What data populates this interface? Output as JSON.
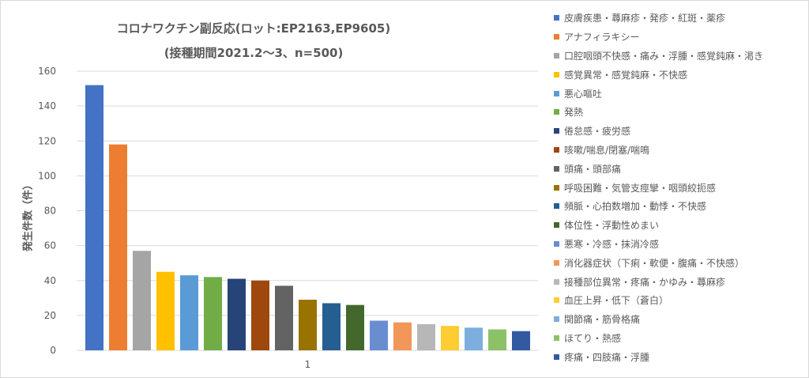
{
  "chart_data": {
    "type": "bar",
    "title": "コロナワクチン副反応(ロット:EP2163,EP9605)",
    "subtitle": "(接種期間2021.2～3、n=500)",
    "ylabel": "発生件数（件）",
    "xlabel": "",
    "categories": [
      "1"
    ],
    "ylim": [
      0,
      160
    ],
    "yticks": [
      0,
      20,
      40,
      60,
      80,
      100,
      120,
      140,
      160
    ],
    "grid": true,
    "legend_position": "right",
    "series": [
      {
        "name": "皮膚疾患・蕁麻疹・発疹・紅斑・薬疹",
        "values": [
          152
        ],
        "color": "#4472c4"
      },
      {
        "name": "アナフィラキシー",
        "values": [
          118
        ],
        "color": "#ed7d31"
      },
      {
        "name": "口腔咽頭不快感・痛み・浮腫・感覚鈍麻・渇き",
        "values": [
          57
        ],
        "color": "#a5a5a5"
      },
      {
        "name": "感覚異常・感覚鈍麻・不快感",
        "values": [
          45
        ],
        "color": "#ffc000"
      },
      {
        "name": "悪心嘔吐",
        "values": [
          43
        ],
        "color": "#5b9bd5"
      },
      {
        "name": "発熱",
        "values": [
          42
        ],
        "color": "#70ad47"
      },
      {
        "name": "倦怠感・疲労感",
        "values": [
          41
        ],
        "color": "#264478"
      },
      {
        "name": "咳嗽/喘息/閉塞/喘鳴",
        "values": [
          40
        ],
        "color": "#9e480e"
      },
      {
        "name": "頭痛・頭部痛",
        "values": [
          37
        ],
        "color": "#636363"
      },
      {
        "name": "呼吸困難・気管支痙攣・咽頭絞扼感",
        "values": [
          29
        ],
        "color": "#997300"
      },
      {
        "name": "頻脈・心拍数増加・動悸・不快感",
        "values": [
          27
        ],
        "color": "#255e91"
      },
      {
        "name": "体位性・浮動性めまい",
        "values": [
          26
        ],
        "color": "#43682b"
      },
      {
        "name": "悪寒・冷感・抹消冷感",
        "values": [
          17
        ],
        "color": "#698ed0"
      },
      {
        "name": "消化器症状（下痢・軟便・腹痛・不快感）",
        "values": [
          16
        ],
        "color": "#f1975a"
      },
      {
        "name": "接種部位異常・疼痛・かゆみ・蕁麻疹",
        "values": [
          15
        ],
        "color": "#b7b7b7"
      },
      {
        "name": "血圧上昇・低下（蒼白）",
        "values": [
          14
        ],
        "color": "#ffcd33"
      },
      {
        "name": "関節痛・筋骨格痛",
        "values": [
          13
        ],
        "color": "#7cafdd"
      },
      {
        "name": "ほてり・熱感",
        "values": [
          12
        ],
        "color": "#8cc168"
      },
      {
        "name": "疼痛・四肢痛・浮腫",
        "values": [
          11
        ],
        "color": "#335aa1"
      }
    ]
  }
}
